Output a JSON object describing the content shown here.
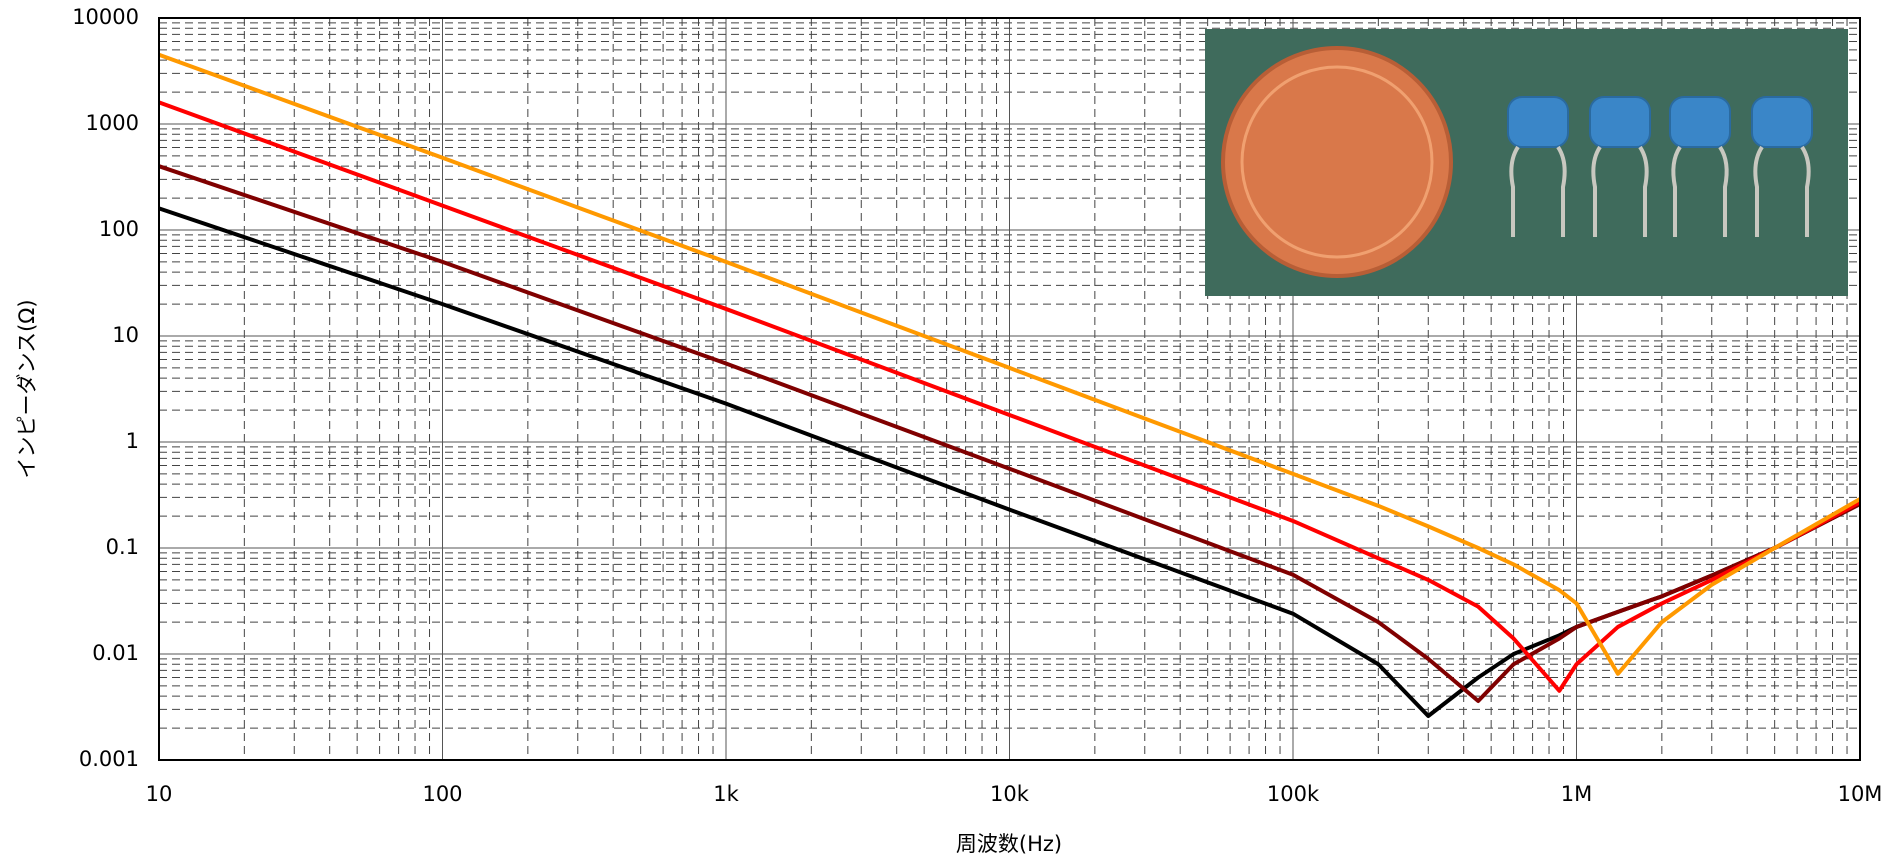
{
  "chart_data": {
    "type": "line",
    "xlabel": "周波数(Hz)",
    "ylabel": "インピーダンス(Ω)",
    "x": [
      10,
      100,
      1000,
      10000,
      100000,
      200000,
      300000,
      450000,
      600000,
      870000,
      1000000,
      1400000,
      2000000,
      3000000,
      5000000,
      10000000
    ],
    "series": [
      {
        "color": "#000000",
        "values": [
          160,
          20,
          2.3,
          0.23,
          0.024,
          0.008,
          0.0026,
          0.006,
          0.01,
          0.015,
          0.018,
          0.025,
          0.035,
          0.055,
          0.1,
          0.26
        ]
      },
      {
        "color": "#800000",
        "values": [
          400,
          50,
          5.5,
          0.56,
          0.056,
          0.02,
          0.009,
          0.0036,
          0.008,
          0.014,
          0.018,
          0.025,
          0.035,
          0.055,
          0.1,
          0.26
        ]
      },
      {
        "color": "#ff0000",
        "values": [
          1600,
          170,
          18,
          1.8,
          0.18,
          0.08,
          0.05,
          0.028,
          0.014,
          0.0045,
          0.008,
          0.018,
          0.03,
          0.05,
          0.1,
          0.27
        ]
      },
      {
        "color": "#ff9900",
        "values": [
          4500,
          480,
          50,
          5,
          0.5,
          0.25,
          0.16,
          0.1,
          0.07,
          0.04,
          0.03,
          0.0065,
          0.02,
          0.045,
          0.1,
          0.29
        ]
      }
    ],
    "xlim": [
      10,
      10000000
    ],
    "xticks": [
      10,
      100,
      {
        "value": 1000,
        "label": "1k"
      },
      {
        "value": 10000,
        "label": "10k"
      },
      {
        "value": 100000,
        "label": "100k"
      },
      {
        "value": 1000000,
        "label": "1M"
      },
      {
        "value": 10000000,
        "label": "10M"
      }
    ],
    "ylim": [
      0.001,
      10000
    ],
    "yticks": [
      0.001,
      0.01,
      0.1,
      1,
      10,
      100,
      1000,
      10000
    ],
    "xscale": "log",
    "yscale": "log",
    "grid": true,
    "minor_grid": true
  }
}
